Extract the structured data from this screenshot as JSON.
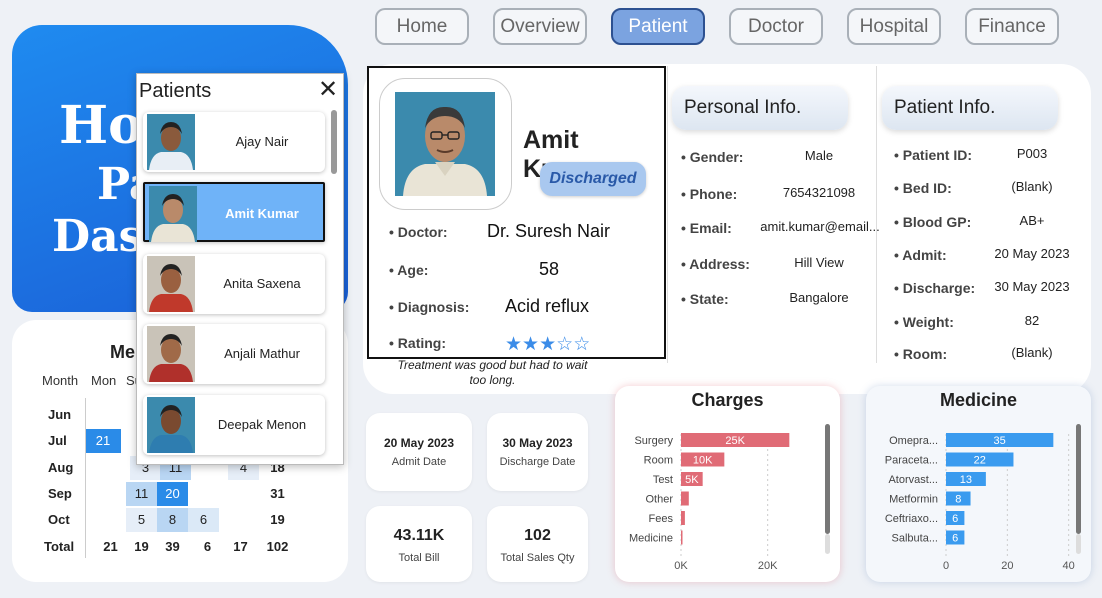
{
  "nav": [
    {
      "label": "Home",
      "active": false
    },
    {
      "label": "Overview",
      "active": false
    },
    {
      "label": "Patient",
      "active": true
    },
    {
      "label": "Doctor",
      "active": false
    },
    {
      "label": "Hospital",
      "active": false
    },
    {
      "label": "Finance",
      "active": false
    }
  ],
  "title_fragments": [
    "Ho",
    "Pa",
    "Das"
  ],
  "monthly": {
    "title": "Me",
    "headers": [
      "Month",
      "Mon",
      "Su"
    ],
    "rows": [
      {
        "month": "Jun",
        "cells": [],
        "total": ""
      },
      {
        "month": "Jul",
        "cells": [
          {
            "value": "21"
          }
        ],
        "total": ""
      },
      {
        "month": "Aug",
        "cells": [
          {
            "value": "3"
          },
          {
            "value": "11"
          },
          {
            "value": "4"
          }
        ],
        "total": "18"
      },
      {
        "month": "Sep",
        "cells": [
          {
            "value": "11"
          },
          {
            "value": "20"
          }
        ],
        "total": "31"
      },
      {
        "month": "Oct",
        "cells": [
          {
            "value": "5"
          },
          {
            "value": "8"
          },
          {
            "value": "6"
          }
        ],
        "total": "19"
      },
      {
        "month": "Total",
        "cells": [
          {
            "value": "21"
          },
          {
            "value": "19"
          },
          {
            "value": "39"
          },
          {
            "value": "6"
          },
          {
            "value": "17"
          }
        ],
        "total": "102"
      }
    ],
    "accent": "#2a8be8"
  },
  "slicer": {
    "title": "Patients",
    "items": [
      {
        "name": "Ajay Nair",
        "selected": false
      },
      {
        "name": "Amit Kumar",
        "selected": true
      },
      {
        "name": "Anita Saxena",
        "selected": false
      },
      {
        "name": "Anjali Mathur",
        "selected": false
      },
      {
        "name": "Deepak Menon",
        "selected": false
      }
    ]
  },
  "patient": {
    "name": "Amit Kumar",
    "status": "Discharged",
    "fields": [
      {
        "label": "Doctor:",
        "value": "Dr. Suresh Nair"
      },
      {
        "label": "Age:",
        "value": "58"
      },
      {
        "label": "Diagnosis:",
        "value": "Acid reflux"
      },
      {
        "label": "Rating:",
        "value": ""
      }
    ],
    "rating": 3,
    "rating_max": 5,
    "comment": "Treatment was good but had to wait too long."
  },
  "personal_info": {
    "title": "Personal Info.",
    "rows": [
      {
        "label": "Gender:",
        "value": "Male"
      },
      {
        "label": "Phone:",
        "value": "7654321098"
      },
      {
        "label": "Email:",
        "value": "amit.kumar@email..."
      },
      {
        "label": "Address:",
        "value": "Hill View"
      },
      {
        "label": "State:",
        "value": "Bangalore"
      }
    ]
  },
  "patient_info": {
    "title": "Patient Info.",
    "rows": [
      {
        "label": "Patient ID:",
        "value": "P003"
      },
      {
        "label": "Bed ID:",
        "value": "(Blank)"
      },
      {
        "label": "Blood GP:",
        "value": "AB+"
      },
      {
        "label": "Admit:",
        "value": "20 May 2023"
      },
      {
        "label": "Discharge:",
        "value": "30 May 2023"
      },
      {
        "label": "Weight:",
        "value": "82"
      },
      {
        "label": "Room:",
        "value": "(Blank)"
      }
    ]
  },
  "kpis": {
    "admit_date": {
      "value": "20 May 2023",
      "label": "Admit Date"
    },
    "discharge_date": {
      "value": "30 May 2023",
      "label": "Discharge Date"
    },
    "total_bill": {
      "value": "43.11K",
      "label": "Total Bill"
    },
    "total_sales_qty": {
      "value": "102",
      "label": "Total Sales Qty"
    }
  },
  "chart_data": [
    {
      "type": "bar",
      "orientation": "horizontal",
      "title": "Charges",
      "categories": [
        "Surgery",
        "Room",
        "Test",
        "Other",
        "Fees",
        "Medicine"
      ],
      "values": [
        25000,
        10000,
        5000,
        1800,
        900,
        300
      ],
      "data_labels": [
        "25K",
        "10K",
        "5K",
        "",
        "",
        ""
      ],
      "xlim": [
        0,
        30000
      ],
      "xticks": [
        "0K",
        "20K"
      ],
      "xtick_values": [
        0,
        20000
      ],
      "color": "#e06b76"
    },
    {
      "type": "bar",
      "orientation": "horizontal",
      "title": "Medicine",
      "categories": [
        "Omepra...",
        "Paraceta...",
        "Atorvast...",
        "Metformin",
        "Ceftriaxo...",
        "Salbuta..."
      ],
      "values": [
        35,
        22,
        13,
        8,
        6,
        6
      ],
      "data_labels": [
        "35",
        "22",
        "13",
        "8",
        "6",
        "6"
      ],
      "xlim": [
        0,
        45
      ],
      "xticks": [
        "0",
        "20",
        "40"
      ],
      "xtick_values": [
        0,
        20,
        40
      ],
      "color": "#3a9bef"
    }
  ]
}
